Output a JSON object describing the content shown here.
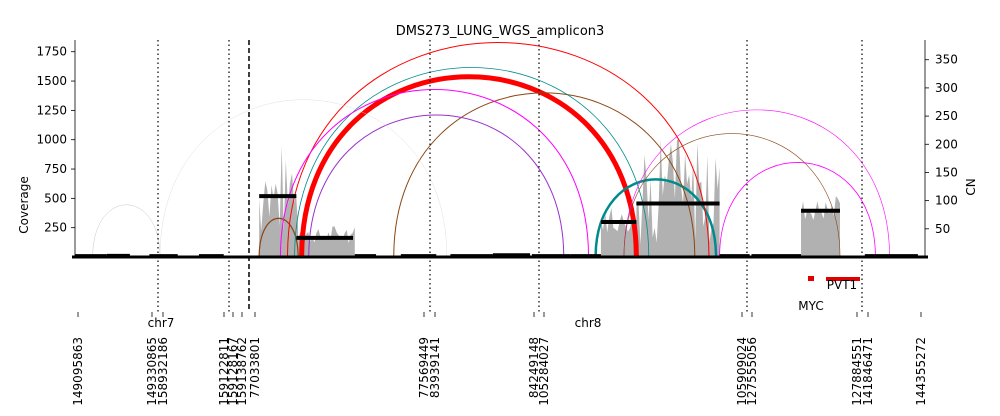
{
  "chart_data": {
    "type": "other",
    "title": "DMS273_LUNG_WGS_amplicon3",
    "ylabel_left": "Coverage",
    "ylabel_right": "CN",
    "y_left": {
      "lim": [
        0,
        1850
      ],
      "ticks": [
        "250",
        "500",
        "750",
        "1000",
        "1250",
        "1500",
        "1750"
      ],
      "tick_values": [
        250,
        500,
        750,
        1000,
        1250,
        1500,
        1750
      ]
    },
    "y_right": {
      "lim": [
        0,
        385
      ],
      "ticks": [
        "50",
        "100",
        "150",
        "200",
        "250",
        "300",
        "350"
      ],
      "tick_values": [
        50,
        100,
        150,
        200,
        250,
        300,
        350
      ]
    },
    "chromosomes": [
      {
        "label": "chr7"
      },
      {
        "label": "chr8"
      }
    ],
    "position_ticks": [
      "149095863",
      "149330865",
      "158932186",
      "159122811",
      "159128167",
      "159138762",
      "77033801",
      "77569449",
      "83939141",
      "84249148",
      "105284027",
      "105909024",
      "127555056",
      "127884551",
      "141846471",
      "144355272"
    ],
    "genes": [
      {
        "name": "MYC",
        "color": "#e00000"
      },
      {
        "name": "PVT1",
        "color": "#e00000"
      }
    ],
    "colors": {
      "coverage": "#a8a8a8",
      "segments": "#000000",
      "arc_red": "#ff0000",
      "arc_teal": "#008b8b",
      "arc_brown": "#8b4513",
      "arc_magenta": "#ff00ff",
      "arc_gray": "#c8c8c8"
    },
    "cn_segments": [
      {
        "start": 0.0,
        "end": 0.09,
        "cn": 1.5
      },
      {
        "start": 0.09,
        "end": 0.155,
        "cn": 2
      },
      {
        "start": 0.21,
        "end": 0.29,
        "cn": 1.6
      },
      {
        "start": 0.35,
        "end": 0.42,
        "cn": 1.5
      },
      {
        "start": 0.52,
        "end": 0.625,
        "cn": 108
      },
      {
        "start": 0.625,
        "end": 0.785,
        "cn": 34
      },
      {
        "start": 0.79,
        "end": 0.85,
        "cn": 1.5
      },
      {
        "start": 0.92,
        "end": 1.02,
        "cn": 1.5
      },
      {
        "start": 1.06,
        "end": 1.18,
        "cn": 1.5
      },
      {
        "start": 1.18,
        "end": 1.285,
        "cn": 3
      },
      {
        "start": 1.29,
        "end": 1.4,
        "cn": 1.5
      },
      {
        "start": 1.4,
        "end": 1.485,
        "cn": 1.5
      },
      {
        "start": 1.485,
        "end": 1.585,
        "cn": 62
      },
      {
        "start": 1.585,
        "end": 1.82,
        "cn": 95
      },
      {
        "start": 1.82,
        "end": 1.905,
        "cn": 1.5
      },
      {
        "start": 1.91,
        "end": 2.05,
        "cn": 1.5
      },
      {
        "start": 2.05,
        "end": 2.16,
        "cn": 82
      },
      {
        "start": 2.23,
        "end": 2.38,
        "cn": 1.5
      }
    ],
    "coverage_regions": [
      {
        "start": 0.52,
        "end": 0.63,
        "level": 500,
        "peak": 950
      },
      {
        "start": 0.63,
        "end": 0.79,
        "level": 180,
        "peak": 260
      },
      {
        "start": 1.485,
        "end": 1.585,
        "level": 300,
        "peak": 420
      },
      {
        "start": 1.585,
        "end": 1.82,
        "level": 500,
        "peak": 1000
      },
      {
        "start": 2.05,
        "end": 2.16,
        "level": 400,
        "peak": 520
      }
    ],
    "arcs": [
      {
        "from": 0.64,
        "to": 1.585,
        "color": "#ff0000",
        "weight": 5.0
      },
      {
        "from": 1.47,
        "to": 1.81,
        "color": "#008b8b",
        "weight": 2.5
      },
      {
        "from": 0.52,
        "to": 0.63,
        "color": "#8b4513",
        "weight": 1.2
      },
      {
        "from": 0.9,
        "to": 1.75,
        "color": "#8b4513",
        "weight": 1.0
      },
      {
        "from": 0.6,
        "to": 1.79,
        "color": "#ff0000",
        "weight": 1.0
      },
      {
        "from": 0.62,
        "to": 1.62,
        "color": "#008b8b",
        "weight": 0.8
      },
      {
        "from": 0.58,
        "to": 1.45,
        "color": "#ff00ff",
        "weight": 1.0
      },
      {
        "from": 0.66,
        "to": 1.38,
        "color": "#9932cc",
        "weight": 1.0
      },
      {
        "from": 1.55,
        "to": 2.3,
        "color": "#ff00ff",
        "weight": 0.6
      },
      {
        "from": 1.82,
        "to": 2.26,
        "color": "#ff00ff",
        "weight": 0.8
      },
      {
        "from": 1.55,
        "to": 2.16,
        "color": "#8b4513",
        "weight": 0.6
      },
      {
        "from": 0.05,
        "to": 0.24,
        "color": "#c8c8c8",
        "weight": 0.5
      },
      {
        "from": 0.24,
        "to": 1.05,
        "color": "#d8d8d8",
        "weight": 0.4
      }
    ]
  }
}
